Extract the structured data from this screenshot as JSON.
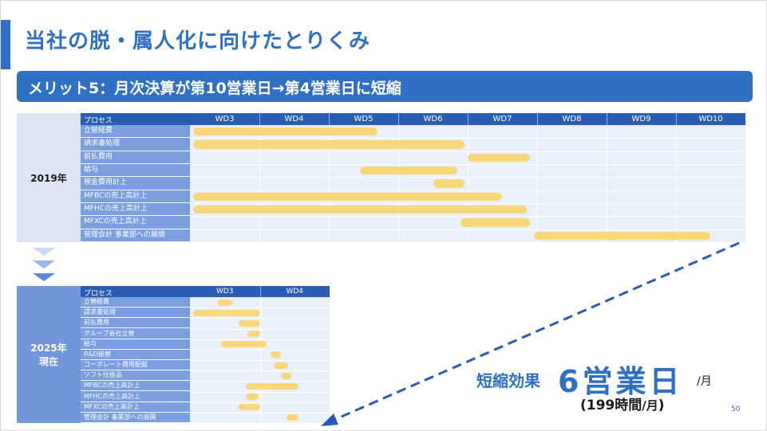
{
  "title": "当社の脱・属人化に向けたとりくみ",
  "banner": "メリット5：月次決算が第10営業日→第4営業日に短縮",
  "colors": {
    "accent": "#2f6fc4",
    "header": "#2a5cb4",
    "label_col": "#7a9fe0",
    "grid_bg": "#eaf0fb",
    "bar": "#f8d77a",
    "year_2025": "#6f96db"
  },
  "chart_data": [
    {
      "type": "table",
      "year_label": "2019年",
      "header": "プロセス",
      "columns": [
        "WD3",
        "WD4",
        "WD5",
        "WD6",
        "WD7",
        "WD8",
        "WD9",
        "WD10"
      ],
      "tasks": [
        {
          "name": "立替経費",
          "start": 0.05,
          "end": 2.7
        },
        {
          "name": "請求書処理",
          "start": 0.05,
          "end": 3.95
        },
        {
          "name": "前払費用",
          "start": 4.0,
          "end": 4.9
        },
        {
          "name": "給与",
          "start": 2.45,
          "end": 3.85
        },
        {
          "name": "税金費用計上",
          "start": 3.5,
          "end": 3.95
        },
        {
          "name": "MFBCの売上高計上",
          "start": 0.05,
          "end": 4.5
        },
        {
          "name": "MFHCの売上高計上",
          "start": 0.05,
          "end": 4.85
        },
        {
          "name": "MFXCの売上高計上",
          "start": 3.9,
          "end": 4.9
        },
        {
          "name": "管理会計 事業部への展開",
          "start": 4.95,
          "end": 7.5
        }
      ]
    },
    {
      "type": "table",
      "year_label": "2025年\n現在",
      "header": "プロセス",
      "columns": [
        "WD3",
        "WD4"
      ],
      "tasks": [
        {
          "name": "立替経費",
          "start": 0.4,
          "end": 0.6
        },
        {
          "name": "請求書処理",
          "start": 0.05,
          "end": 1.0
        },
        {
          "name": "前払費用",
          "start": 0.7,
          "end": 1.0
        },
        {
          "name": "グループ会社立替",
          "start": 0.82,
          "end": 1.0
        },
        {
          "name": "給与",
          "start": 0.45,
          "end": 1.1
        },
        {
          "name": "R&D振替",
          "start": 1.15,
          "end": 1.3
        },
        {
          "name": "コーポレート費用配賦",
          "start": 1.2,
          "end": 1.4
        },
        {
          "name": "ソフト仕掛品",
          "start": 1.3,
          "end": 1.45
        },
        {
          "name": "MFBCの売上高計上",
          "start": 0.8,
          "end": 1.55
        },
        {
          "name": "MFHCの売上高計上",
          "start": 0.8,
          "end": 0.98
        },
        {
          "name": "MFXCの売上高計上",
          "start": 0.7,
          "end": 1.0
        },
        {
          "name": "管理会計 事業部への展開",
          "start": 1.38,
          "end": 1.55
        }
      ]
    }
  ],
  "effect": {
    "label": "短縮効果",
    "value": "6営業日",
    "unit": "/月",
    "sub_open": "(199",
    "sub_word": "時間",
    "sub_unit": "/月",
    "sub_close": ")"
  },
  "page_number": "50"
}
